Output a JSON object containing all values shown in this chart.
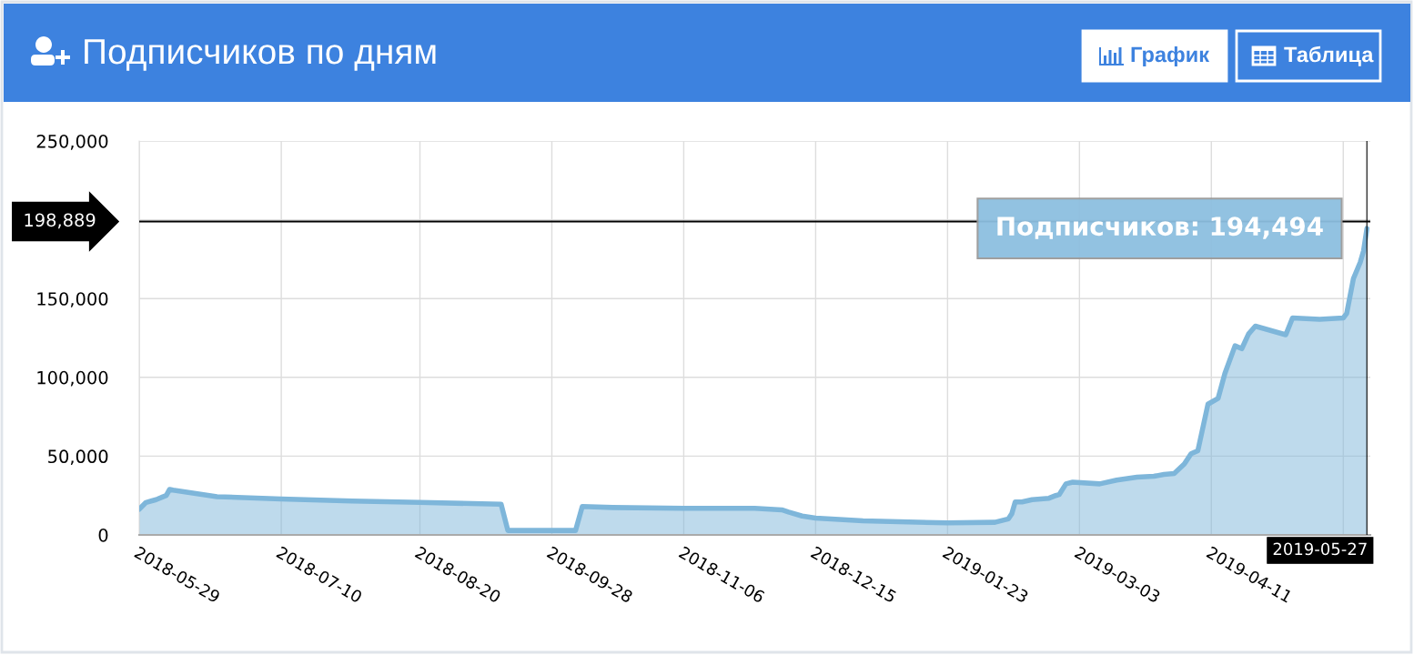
{
  "chart_data": {
    "type": "area",
    "title": "Подписчиков по дням",
    "x": [
      "2018-05-29",
      "2018-05-31",
      "2018-06-02",
      "2018-06-03",
      "2018-06-05",
      "2018-06-06",
      "2018-06-07",
      "2018-06-08",
      "2018-06-21",
      "2018-07-10",
      "2018-07-31",
      "2018-08-20",
      "2018-09-13",
      "2018-09-15",
      "2018-10-05",
      "2018-10-07",
      "2018-10-16",
      "2018-11-06",
      "2018-11-27",
      "2018-12-05",
      "2018-12-07",
      "2018-12-11",
      "2018-12-15",
      "2018-12-29",
      "2019-01-23",
      "2019-02-06",
      "2019-02-10",
      "2019-02-11",
      "2019-02-12",
      "2019-02-14",
      "2019-02-17",
      "2019-02-22",
      "2019-02-24",
      "2019-02-25",
      "2019-02-27",
      "2019-03-01",
      "2019-03-09",
      "2019-03-14",
      "2019-03-20",
      "2019-03-25",
      "2019-03-28",
      "2019-03-31",
      "2019-04-03",
      "2019-04-05",
      "2019-04-07",
      "2019-04-10",
      "2019-04-13",
      "2019-04-15",
      "2019-04-18",
      "2019-04-20",
      "2019-04-22",
      "2019-04-24",
      "2019-05-03",
      "2019-05-05",
      "2019-05-09",
      "2019-05-13",
      "2019-05-20",
      "2019-05-21",
      "2019-05-23",
      "2019-05-25",
      "2019-05-26",
      "2019-05-27"
    ],
    "series": [
      {
        "color": "#7eb6da",
        "values": [
          16300,
          20600,
          21800,
          22400,
          24200,
          25000,
          28900,
          28400,
          24300,
          22800,
          21500,
          20600,
          19500,
          2800,
          2800,
          18000,
          17400,
          16900,
          16900,
          15900,
          14500,
          12000,
          10700,
          8900,
          7600,
          8000,
          10200,
          13500,
          20900,
          20900,
          22400,
          23300,
          25000,
          25600,
          32400,
          33500,
          32400,
          34800,
          36700,
          37200,
          38400,
          39000,
          45000,
          51500,
          53400,
          83000,
          86700,
          102500,
          120000,
          118200,
          127500,
          132500,
          127000,
          137700,
          137300,
          136800,
          137700,
          140500,
          162700,
          172900,
          180300,
          194494
        ]
      }
    ],
    "xlim": [
      "2018-05-29",
      "2019-05-28"
    ],
    "xticks": [
      {
        "value": "2018-05-29",
        "label": "2018-05-29"
      },
      {
        "value": "2018-07-10",
        "label": "2018-07-10"
      },
      {
        "value": "2018-08-20",
        "label": "2018-08-20"
      },
      {
        "value": "2018-09-28",
        "label": "2018-09-28"
      },
      {
        "value": "2018-11-06",
        "label": "2018-11-06"
      },
      {
        "value": "2018-12-15",
        "label": "2018-12-15"
      },
      {
        "value": "2019-01-23",
        "label": "2019-01-23"
      },
      {
        "value": "2019-03-03",
        "label": "2019-03-03"
      },
      {
        "value": "2019-04-11",
        "label": "2019-04-11"
      },
      {
        "value": "2019-05-20",
        "label": null
      }
    ],
    "ylim": [
      0,
      250000
    ],
    "yticks": [
      0,
      {
        "value": 50000,
        "label": "50,000"
      },
      {
        "value": 100000,
        "label": "100,000"
      },
      {
        "value": 150000,
        "label": "150,000"
      },
      {
        "value": 200000,
        "label": null
      },
      {
        "value": 250000,
        "label": "250,000"
      }
    ],
    "grid": true,
    "ref_lines": [
      {
        "axis": "y",
        "value": 198889,
        "label": "198,889",
        "color": "#000000"
      },
      {
        "axis": "x",
        "value": "2019-05-27",
        "label": "2019-05-27",
        "color": "#000000"
      }
    ],
    "annotations": [
      "График",
      "Таблица",
      {
        "text": "Подписчиков: 194,494",
        "x": "2019-05-27",
        "y": 194494
      }
    ]
  }
}
